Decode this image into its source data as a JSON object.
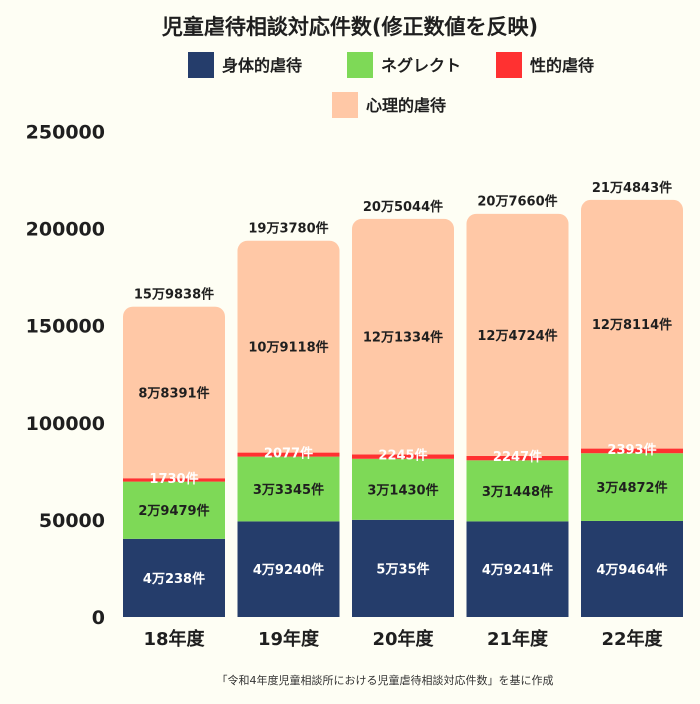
{
  "chart_data": {
    "type": "bar",
    "stacked": true,
    "title": "児童虐待相談対応件数(修正数値を反映)",
    "source": "「令和4年度児童相談所における児童虐待相談対応件数」を基に作成",
    "categories": [
      "18年度",
      "19年度",
      "20年度",
      "21年度",
      "22年度"
    ],
    "ylim": [
      0,
      250000
    ],
    "yticks": [
      0,
      50000,
      100000,
      150000,
      200000,
      250000
    ],
    "ytick_labels": [
      "0",
      "50000",
      "100000",
      "150000",
      "200000",
      "250000"
    ],
    "grid": false,
    "legend_position": "top",
    "series": [
      {
        "name": "身体的虐待",
        "color": "#253d6b",
        "values": [
          40238,
          49240,
          50035,
          49241,
          49464
        ],
        "labels": [
          "4万238件",
          "4万9240件",
          "5万35件",
          "4万9241件",
          "4万9464件"
        ],
        "label_color": "#ffffff"
      },
      {
        "name": "ネグレクト",
        "color": "#7ed957",
        "values": [
          29479,
          33345,
          31430,
          31448,
          34872
        ],
        "labels": [
          "2万9479件",
          "3万3345件",
          "3万1430件",
          "3万1448件",
          "3万4872件"
        ],
        "label_color": "#1f1f1f"
      },
      {
        "name": "性的虐待",
        "color": "#ff3131",
        "values": [
          1730,
          2077,
          2245,
          2247,
          2393
        ],
        "labels": [
          "1730件",
          "2077件",
          "2245件",
          "2247件",
          "2393件"
        ],
        "label_color": "#ffffff"
      },
      {
        "name": "心理的虐待",
        "color": "#ffc8a6",
        "values": [
          88391,
          109118,
          121334,
          124724,
          128114
        ],
        "labels": [
          "8万8391件",
          "10万9118件",
          "12万1334件",
          "12万4724件",
          "12万8114件"
        ],
        "label_color": "#1f1f1f"
      }
    ],
    "totals": [
      159838,
      193780,
      205044,
      207660,
      214843
    ],
    "total_labels": [
      "15万9838件",
      "19万3780件",
      "20万5044件",
      "20万7660件",
      "21万4843件"
    ],
    "highlight_color": "#ff3131",
    "highlight_index": 4
  }
}
